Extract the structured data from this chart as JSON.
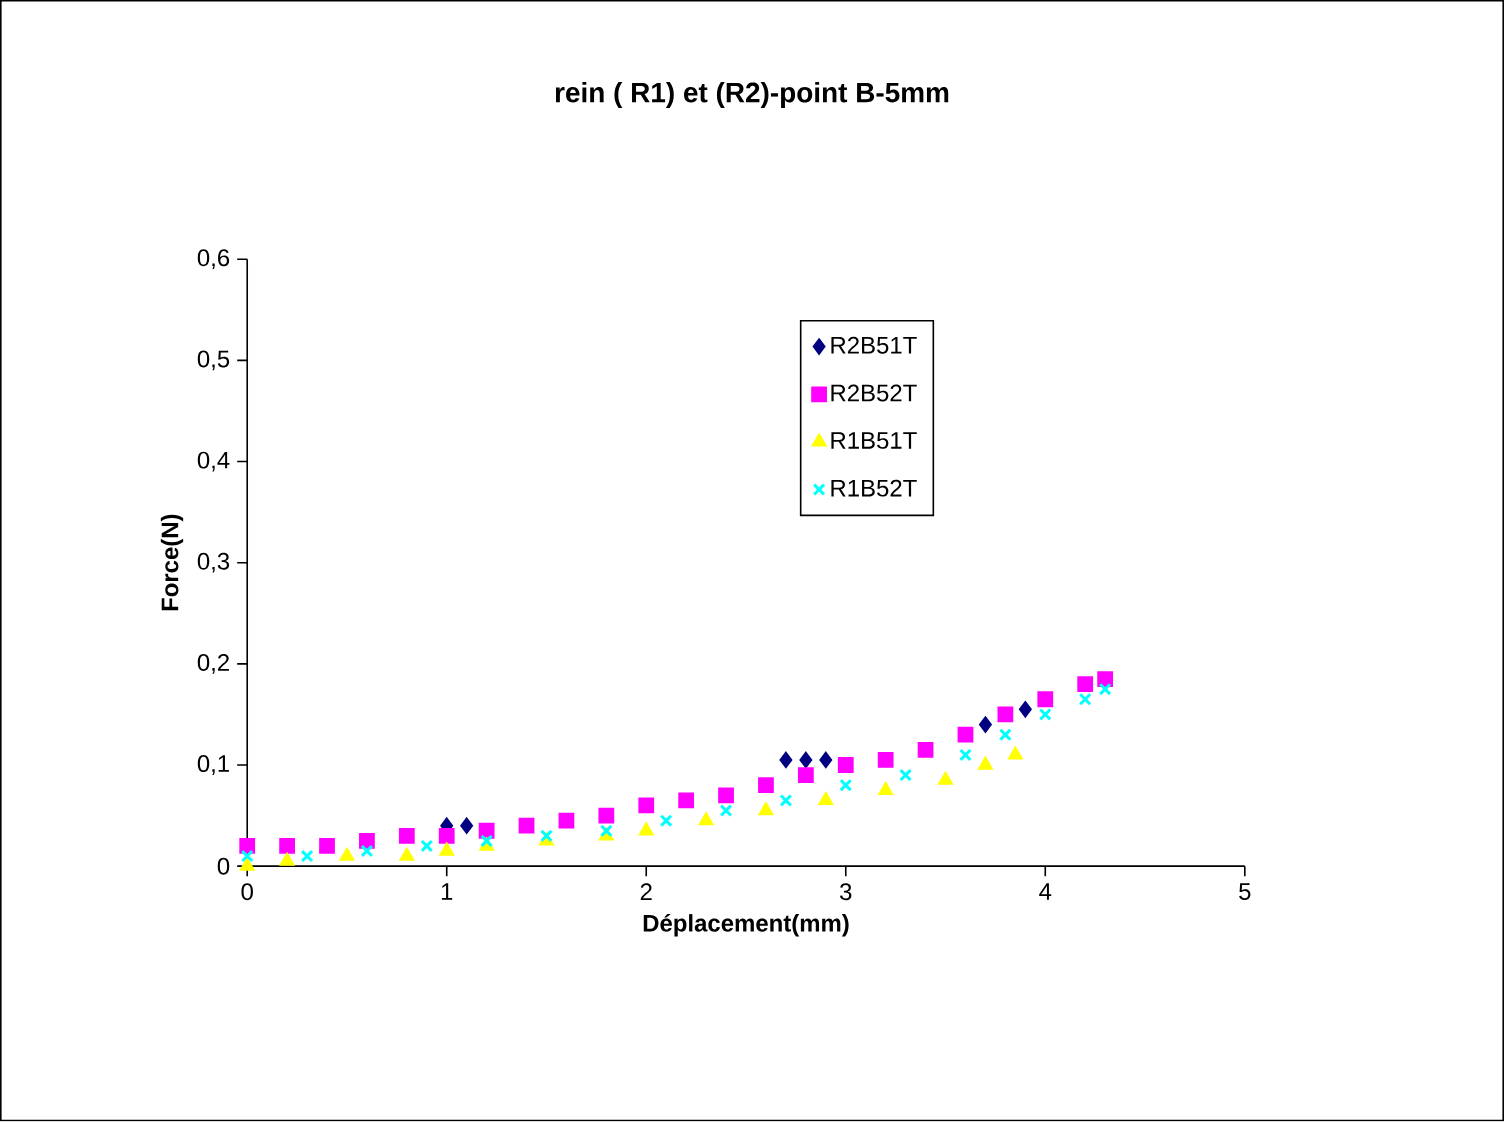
{
  "chart_data": {
    "type": "scatter",
    "title": "rein ( R1) et (R2)-point B-5mm",
    "xlabel": "Déplacement(mm)",
    "ylabel": "Force(N)",
    "xlim": [
      0,
      5
    ],
    "ylim": [
      0,
      0.6
    ],
    "xticks": [
      0,
      1,
      2,
      3,
      4,
      5
    ],
    "yticks": [
      0,
      {
        "value": 0.1,
        "label": "0,1"
      },
      {
        "value": 0.2,
        "label": "0,2"
      },
      {
        "value": 0.3,
        "label": "0,3"
      },
      {
        "value": 0.4,
        "label": "0,4"
      },
      {
        "value": 0.5,
        "label": "0,5"
      },
      {
        "value": 0.6,
        "label": "0,6"
      }
    ],
    "grid": false,
    "legend": "top right",
    "series": [
      {
        "name": "R2B51T",
        "color": "#000080",
        "marker": "diamond",
        "x": [
          1.0,
          1.1,
          2.7,
          2.8,
          2.9,
          3.7,
          3.9
        ],
        "values": [
          0.04,
          0.04,
          0.105,
          0.105,
          0.105,
          0.14,
          0.155
        ]
      },
      {
        "name": "R2B52T",
        "color": "#ff00ff",
        "marker": "square",
        "x": [
          0,
          0.2,
          0.4,
          0.6,
          0.8,
          1.0,
          1.2,
          1.4,
          1.6,
          1.8,
          2.0,
          2.2,
          2.4,
          2.6,
          2.8,
          3.0,
          3.2,
          3.4,
          3.6,
          3.8,
          4.0,
          4.2,
          4.3
        ],
        "values": [
          0.02,
          0.02,
          0.02,
          0.025,
          0.03,
          0.03,
          0.035,
          0.04,
          0.045,
          0.05,
          0.06,
          0.065,
          0.07,
          0.08,
          0.09,
          0.1,
          0.105,
          0.115,
          0.13,
          0.15,
          0.165,
          0.18,
          0.185
        ]
      },
      {
        "name": "R1B51T",
        "color": "#ffff00",
        "marker": "triangle",
        "x": [
          0,
          0.2,
          0.5,
          0.8,
          1.0,
          1.2,
          1.5,
          1.8,
          2.0,
          2.3,
          2.6,
          2.9,
          3.2,
          3.5,
          3.7,
          3.85
        ],
        "values": [
          0,
          0.005,
          0.01,
          0.01,
          0.015,
          0.02,
          0.025,
          0.03,
          0.035,
          0.045,
          0.055,
          0.065,
          0.075,
          0.085,
          0.1,
          0.11
        ]
      },
      {
        "name": "R1B52T",
        "color": "#00ffff",
        "marker": "cross",
        "x": [
          0,
          0.3,
          0.6,
          0.9,
          1.2,
          1.5,
          1.8,
          2.1,
          2.4,
          2.7,
          3.0,
          3.3,
          3.6,
          3.8,
          4.0,
          4.2,
          4.3
        ],
        "values": [
          0.01,
          0.01,
          0.015,
          0.02,
          0.025,
          0.03,
          0.035,
          0.045,
          0.055,
          0.065,
          0.08,
          0.09,
          0.11,
          0.13,
          0.15,
          0.165,
          0.175
        ]
      }
    ]
  }
}
